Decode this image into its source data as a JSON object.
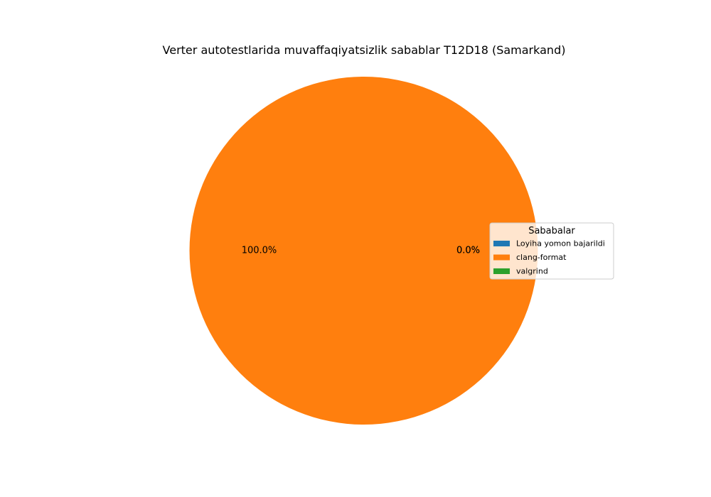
{
  "chart_data": {
    "type": "pie",
    "title": "Verter autotestlarida muvaffaqiyatsizlik sabablar T12D18 (Samarkand)",
    "slices": [
      {
        "label": "Loyiha yomon bajarildi",
        "value": 0,
        "percent_label": "0.0%",
        "color": "#1f77b4"
      },
      {
        "label": "clang-format",
        "value": 100,
        "percent_label": "100.0%",
        "color": "#ff7f0e"
      },
      {
        "label": "valgrind",
        "value": 0,
        "percent_label": "0.0%",
        "color": "#2ca02c"
      }
    ],
    "legend": {
      "title": "Sababalar",
      "placement": "center-right"
    }
  }
}
